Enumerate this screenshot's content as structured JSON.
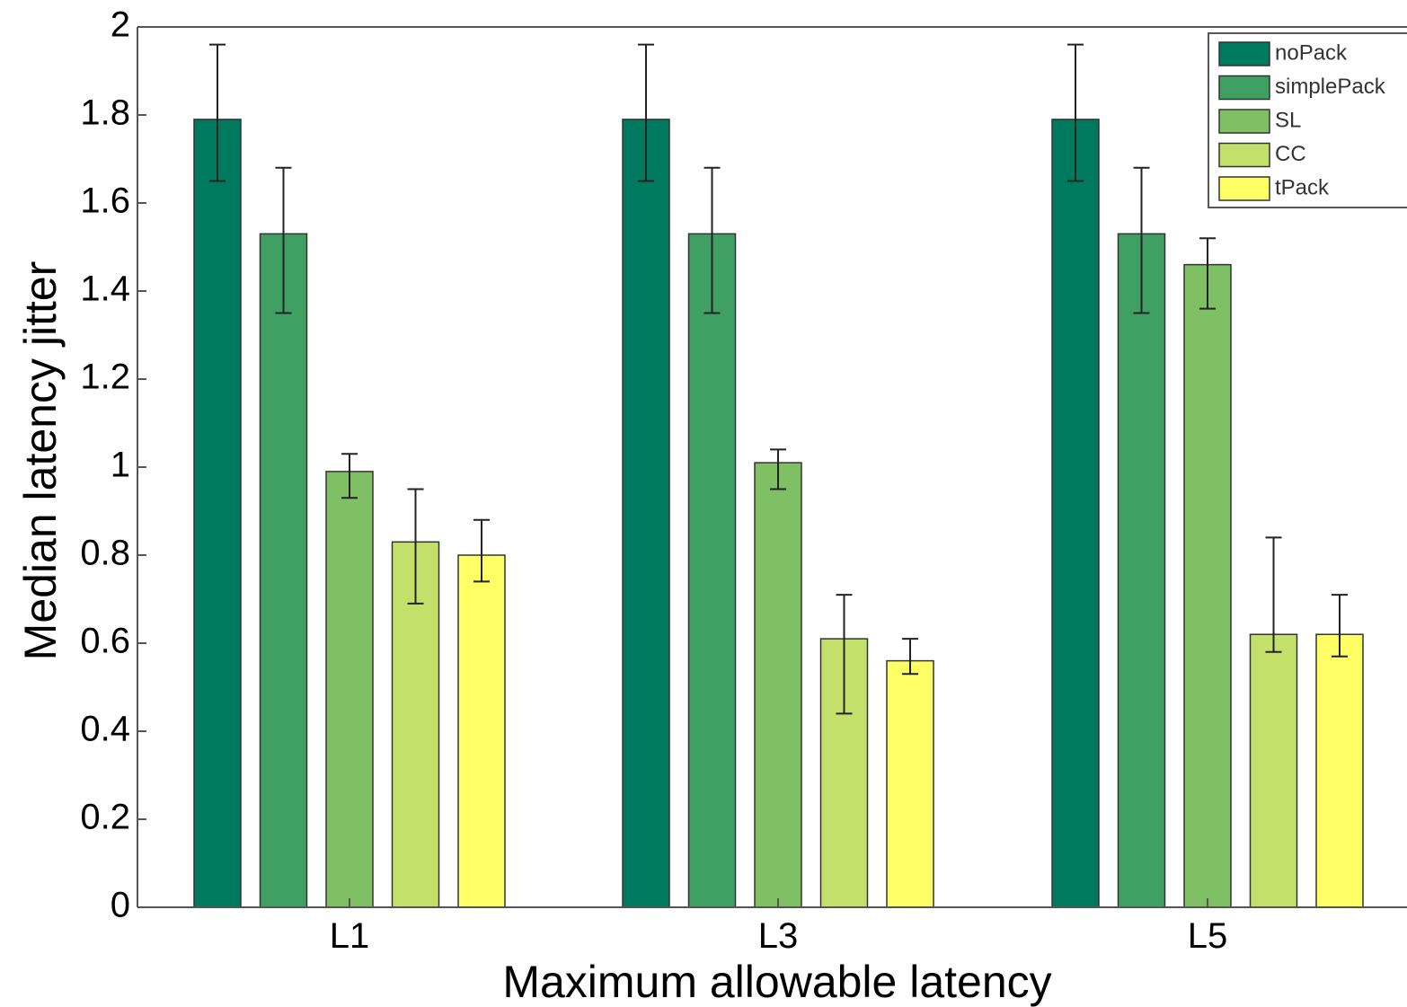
{
  "chart_data": {
    "type": "bar",
    "title": "",
    "xlabel": "Maximum allowable latency",
    "ylabel": "Median latency jitter",
    "categories": [
      "L1",
      "L3",
      "L5"
    ],
    "ylim": [
      0,
      2
    ],
    "yticks": [
      0,
      0.2,
      0.4,
      0.6,
      0.8,
      1,
      1.2,
      1.4,
      1.6,
      1.8,
      2
    ],
    "ytick_labels": [
      "0",
      "0.2",
      "0.4",
      "0.6",
      "0.8",
      "1",
      "1.2",
      "1.4",
      "1.6",
      "1.8",
      "2"
    ],
    "grid": false,
    "legend_position": "top-right",
    "series": [
      {
        "name": "noPack",
        "color": "#007A5E",
        "values": [
          1.79,
          1.79,
          1.79
        ],
        "err_low": [
          1.65,
          1.65,
          1.65
        ],
        "err_high": [
          1.96,
          1.96,
          1.96
        ]
      },
      {
        "name": "simplePack",
        "color": "#40A064",
        "values": [
          1.53,
          1.53,
          1.53
        ],
        "err_low": [
          1.35,
          1.35,
          1.35
        ],
        "err_high": [
          1.68,
          1.68,
          1.68
        ]
      },
      {
        "name": "SL",
        "color": "#80C064",
        "values": [
          0.99,
          1.01,
          1.46
        ],
        "err_low": [
          0.93,
          0.95,
          1.36
        ],
        "err_high": [
          1.03,
          1.04,
          1.52
        ]
      },
      {
        "name": "CC",
        "color": "#C2E06A",
        "values": [
          0.83,
          0.61,
          0.62
        ],
        "err_low": [
          0.69,
          0.44,
          0.58
        ],
        "err_high": [
          0.95,
          0.71,
          0.84
        ]
      },
      {
        "name": "tPack",
        "color": "#FFFF66",
        "values": [
          0.8,
          0.56,
          0.62
        ],
        "err_low": [
          0.74,
          0.53,
          0.57
        ],
        "err_high": [
          0.88,
          0.61,
          0.71
        ]
      }
    ]
  }
}
